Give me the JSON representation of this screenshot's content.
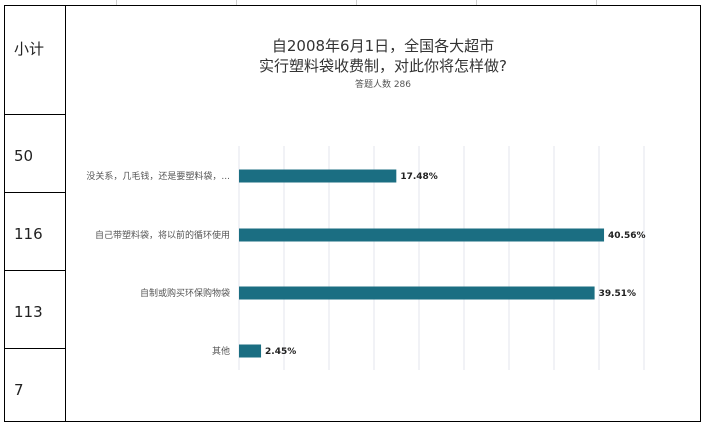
{
  "left_column": {
    "header": "小计",
    "values": [
      "50",
      "116",
      "113",
      "7"
    ]
  },
  "chart_data": {
    "type": "bar",
    "orientation": "horizontal",
    "title_line1": "自2008年6月1日，全国各大超市",
    "title_line2": "实行塑料袋收费制，对此你将怎样做?",
    "subtitle": "答题人数 286",
    "categories": [
      "没关系，几毛钱，还是要塑料袋，...",
      "自己带塑料袋，将以前的循环使用",
      "自制或购买环保购物袋",
      "其他"
    ],
    "values": [
      17.48,
      40.56,
      39.51,
      2.45
    ],
    "labels": [
      "17.48%",
      "40.56%",
      "39.51%",
      "2.45%"
    ],
    "xlim": [
      0,
      45
    ],
    "grid": true,
    "bar_color": "#1b6e82"
  }
}
